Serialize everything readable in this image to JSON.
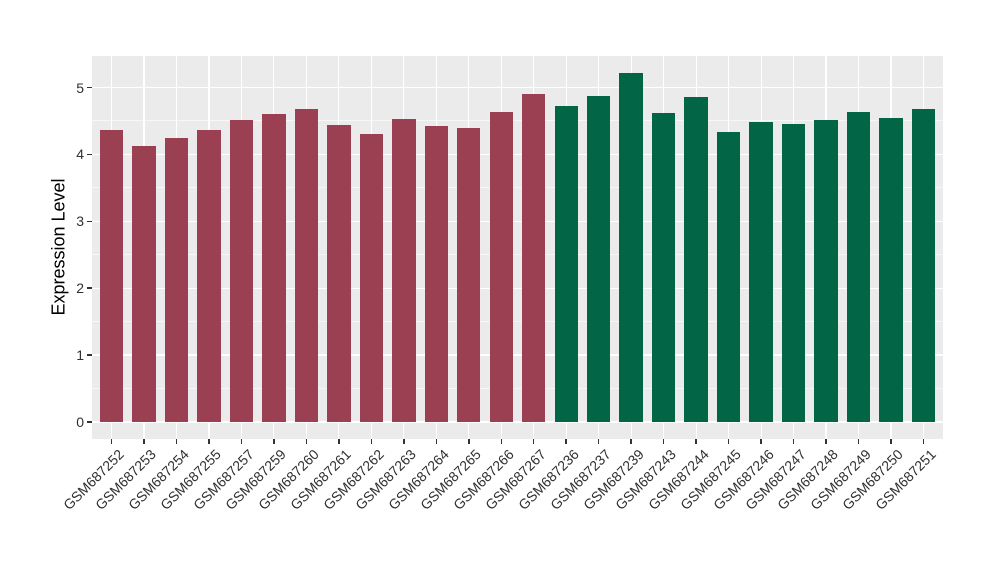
{
  "chart_data": {
    "type": "bar",
    "title": "",
    "xlabel": "",
    "ylabel": "Expression Level",
    "ylim": [
      0,
      5.47
    ],
    "y_major_ticks": [
      0,
      1,
      2,
      3,
      4,
      5
    ],
    "y_minor_step": 0.5,
    "grid": "white major and minor gridlines on gray panel",
    "legend_position": "none",
    "categories": [
      "GSM687252",
      "GSM687253",
      "GSM687254",
      "GSM687255",
      "GSM687257",
      "GSM687259",
      "GSM687260",
      "GSM687261",
      "GSM687262",
      "GSM687263",
      "GSM687264",
      "GSM687265",
      "GSM687266",
      "GSM687267",
      "GSM687236",
      "GSM687237",
      "GSM687239",
      "GSM687243",
      "GSM687244",
      "GSM687245",
      "GSM687246",
      "GSM687247",
      "GSM687248",
      "GSM687249",
      "GSM687250",
      "GSM687251"
    ],
    "values": [
      4.36,
      4.12,
      4.24,
      4.36,
      4.52,
      4.61,
      4.68,
      4.44,
      4.31,
      4.53,
      4.42,
      4.39,
      4.64,
      4.91,
      4.73,
      4.88,
      5.21,
      4.62,
      4.86,
      4.33,
      4.48,
      4.46,
      4.52,
      4.63,
      4.55,
      4.68
    ],
    "bar_groups": [
      1,
      1,
      1,
      1,
      1,
      1,
      1,
      1,
      1,
      1,
      1,
      1,
      1,
      1,
      2,
      2,
      2,
      2,
      2,
      2,
      2,
      2,
      2,
      2,
      2,
      2
    ],
    "group_colors": {
      "1": "#9B4052",
      "2": "#026546"
    }
  },
  "style": {
    "page_background": "#FFFFFF",
    "panel_background": "#EBEBEB",
    "grid_color": "#FFFFFF",
    "tick_mark_color": "#333333",
    "axis_text_color": "#303030",
    "axis_title_color": "#000000"
  }
}
